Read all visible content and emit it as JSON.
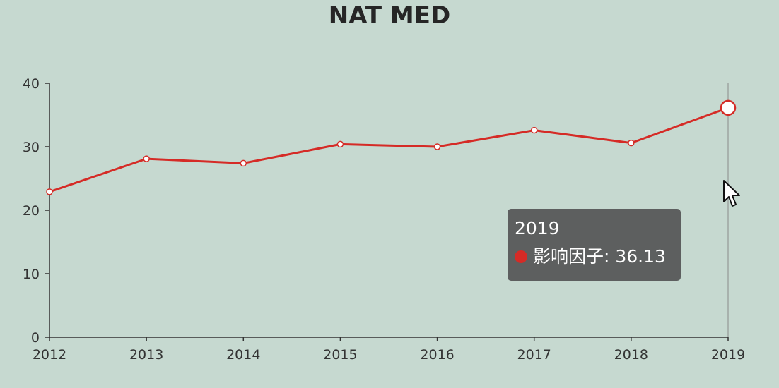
{
  "chart_data": {
    "type": "line",
    "title": "NAT MED",
    "x": [
      "2012",
      "2013",
      "2014",
      "2015",
      "2016",
      "2017",
      "2018",
      "2019"
    ],
    "series": [
      {
        "values": [
          22.9,
          28.1,
          27.4,
          30.4,
          30.0,
          32.6,
          30.6,
          36.13
        ]
      }
    ],
    "yticks": [
      "0",
      "10",
      "20",
      "30",
      "40"
    ],
    "ylim": [
      0,
      40
    ],
    "grid": false,
    "line_color": "#d52b26",
    "highlighted_index": 7
  },
  "tooltip": {
    "title": "2019",
    "label": "影响因子: 36.13",
    "color": "#d52b26"
  }
}
